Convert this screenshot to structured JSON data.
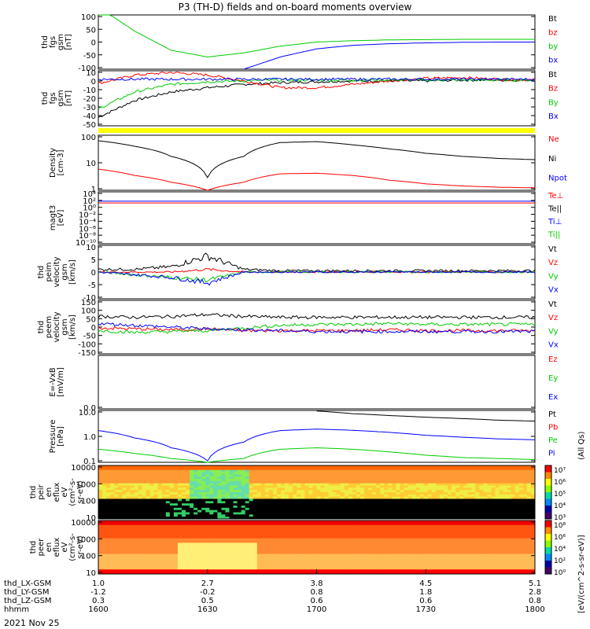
{
  "title": "P3 (TH-D) fields and on-board moments overview",
  "date_label": "2021 Nov 25",
  "cbar_unit_left": "[eV/(cm^2-s-sr-eV)]",
  "cbar_unit_right": "(All Qs)",
  "colors": {
    "black": "#000000",
    "red": "#ff0000",
    "green": "#00cc00",
    "blue": "#0000ff",
    "yellow": "#ffff00"
  },
  "panels": [
    {
      "id": "fgs-gsm",
      "ylabel": [
        "thd",
        "fgs",
        "gsm",
        "[nT]"
      ],
      "ticks": [
        "100",
        "50",
        "0",
        "-50",
        "-100"
      ],
      "legend": [
        {
          "t": "Bt",
          "c": "black"
        },
        {
          "t": "bz",
          "c": "red"
        },
        {
          "t": "by",
          "c": "green"
        },
        {
          "t": "bx",
          "c": "blue"
        }
      ]
    },
    {
      "id": "fgs-gsm-detail",
      "ylabel": [
        "thd",
        "fgs",
        "gsm",
        "[nT]"
      ],
      "ticks": [
        "10",
        "0",
        "-10",
        "-20",
        "-30",
        "-40",
        "-50"
      ],
      "legend": [
        {
          "t": "Bt",
          "c": "black"
        },
        {
          "t": "Bz",
          "c": "red"
        },
        {
          "t": "By",
          "c": "green"
        },
        {
          "t": "Bx",
          "c": "blue"
        }
      ]
    },
    {
      "id": "density",
      "ylabel": [
        "Density",
        "[cm-3]"
      ],
      "ticks": [
        "100",
        "10",
        "1"
      ],
      "legend": [
        {
          "t": "Ne",
          "c": "red"
        },
        {
          "t": "Ni",
          "c": "black"
        },
        {
          "t": "Npot",
          "c": "blue"
        }
      ]
    },
    {
      "id": "temperature",
      "ylabel": [
        "magt3",
        "[eV]"
      ],
      "ticks": [
        "10⁴",
        "10²",
        "10⁰",
        "10⁻²",
        "10⁻⁴",
        "10⁻⁶",
        "10⁻⁸",
        "10⁻¹⁰"
      ],
      "legend": [
        {
          "t": "Te⊥",
          "c": "red"
        },
        {
          "t": "Te||",
          "c": "black"
        },
        {
          "t": "Ti⊥",
          "c": "blue"
        },
        {
          "t": "Ti||",
          "c": "green"
        }
      ]
    },
    {
      "id": "peim-velocity",
      "ylabel": [
        "thd",
        "peim",
        "velocity",
        "gsm",
        "[km/s]"
      ],
      "ticks": [
        "10",
        "5",
        "0",
        "-5",
        "-10"
      ],
      "legend": [
        {
          "t": "Vt",
          "c": "black"
        },
        {
          "t": "Vz",
          "c": "red"
        },
        {
          "t": "Vy",
          "c": "green"
        },
        {
          "t": "Vx",
          "c": "blue"
        }
      ]
    },
    {
      "id": "peem-velocity",
      "ylabel": [
        "thd",
        "peem",
        "velocity",
        "gsm",
        "[km/s]"
      ],
      "ticks": [
        "150",
        "100",
        "50",
        "0",
        "-50",
        "-100",
        "-150"
      ],
      "legend": [
        {
          "t": "Vt",
          "c": "black"
        },
        {
          "t": "Vz",
          "c": "red"
        },
        {
          "t": "Vy",
          "c": "green"
        },
        {
          "t": "Vx",
          "c": "blue"
        }
      ]
    },
    {
      "id": "efield",
      "ylabel": [
        "E=-VxB",
        "[mV/m]"
      ],
      "ticks": [
        "0.0"
      ],
      "legend": [
        {
          "t": "Ez",
          "c": "red"
        },
        {
          "t": "Ey",
          "c": "green"
        },
        {
          "t": "Ex",
          "c": "blue"
        }
      ]
    },
    {
      "id": "pressure",
      "ylabel": [
        "Pressure",
        "[nPa]"
      ],
      "ticks": [
        "10.0",
        "1.0",
        "0.1"
      ],
      "legend": [
        {
          "t": "Pt",
          "c": "black"
        },
        {
          "t": "Pb",
          "c": "red"
        },
        {
          "t": "Pe",
          "c": "green"
        },
        {
          "t": "Pi",
          "c": "blue"
        }
      ]
    },
    {
      "id": "peir-spec",
      "ylabel": [
        "thd",
        "peir",
        "en",
        "eflux",
        "eV",
        "(cm²-s-",
        "sr-eV)"
      ],
      "ticks": [
        "10000",
        "1000",
        "100",
        "10"
      ],
      "cbar_ticks": [
        "10⁷",
        "10⁶",
        "10⁵",
        "10⁴",
        "10³"
      ]
    },
    {
      "id": "peer-spec",
      "ylabel": [
        "thd",
        "peer",
        "en",
        "eflux",
        "eV",
        "(cm²-s-",
        "sr-eV)"
      ],
      "ticks": [
        "10000",
        "1000",
        "100",
        "10"
      ],
      "cbar_ticks": [
        "10⁸",
        "10⁶",
        "10⁴",
        "10²",
        "10⁰"
      ]
    }
  ],
  "x_axis": {
    "rows": [
      {
        "label": "thd_LX-GSM",
        "values": [
          "1.0",
          "2.7",
          "3.8",
          "4.5",
          "5.1"
        ]
      },
      {
        "label": "thd_LY-GSM",
        "values": [
          "-1.2",
          "-0.2",
          "0.8",
          "1.8",
          "2.8"
        ]
      },
      {
        "label": "thd_LZ-GSM",
        "values": [
          "0.3",
          "0.5",
          "0.6",
          "0.6",
          "0.8"
        ]
      },
      {
        "label": "hhmm",
        "values": [
          "1600",
          "1630",
          "1700",
          "1730",
          "1800"
        ]
      }
    ]
  },
  "chart_data": {
    "type": "line",
    "title": "P3 (TH-D) fields and on-board moments overview",
    "x": {
      "label": "hhmm",
      "ticks": [
        "1600",
        "1630",
        "1700",
        "1730",
        "1800"
      ],
      "range": [
        "1600",
        "1800"
      ]
    },
    "series_time": [
      "1600",
      "1610",
      "1620",
      "1630",
      "1640",
      "1650",
      "1700",
      "1710",
      "1720",
      "1730",
      "1740",
      "1750",
      "1800"
    ],
    "panels": [
      {
        "id": "fgs-gsm",
        "ylim": [
          -100,
          100
        ],
        "series": [
          {
            "name": "by",
            "values": [
              130,
              40,
              -30,
              -55,
              -40,
              -15,
              0,
              5,
              8,
              9,
              10,
              10,
              10
            ]
          },
          {
            "name": "bx",
            "values": [
              null,
              null,
              null,
              null,
              -100,
              -55,
              -25,
              -12,
              -6,
              -3,
              -1,
              0,
              0
            ]
          }
        ]
      },
      {
        "id": "fgs-gsm-detail",
        "ylim": [
          -55,
          10
        ],
        "series": [
          {
            "name": "Bt",
            "values": [
              -45,
              -25,
              -15,
              -10,
              -6,
              -4,
              -3,
              -2,
              -2,
              -2,
              -1,
              -1,
              -1
            ]
          },
          {
            "name": "Bz",
            "values": [
              -5,
              5,
              8,
              5,
              -2,
              -10,
              -10,
              -6,
              -2,
              1,
              2,
              0,
              -1
            ]
          },
          {
            "name": "By",
            "values": [
              -35,
              -15,
              -6,
              -3,
              -2,
              -1,
              -1,
              -1,
              -1,
              -1,
              -1,
              -1,
              -1
            ]
          },
          {
            "name": "Bx",
            "values": [
              0,
              0,
              0,
              0,
              0,
              0,
              0,
              0,
              0,
              0,
              0,
              0,
              0
            ]
          }
        ]
      },
      {
        "id": "density",
        "ylim": [
          0.5,
          200
        ],
        "log": true,
        "series": [
          {
            "name": "Ni",
            "values": [
              110,
              60,
              20,
              2,
              20,
              90,
              100,
              70,
              45,
              28,
              20,
              16,
              14
            ]
          },
          {
            "name": "Ne",
            "values": [
              5,
              2.5,
              1.2,
              0.5,
              1.2,
              3,
              3.2,
              2.5,
              1.5,
              1,
              0.8,
              0.7,
              0.65
            ]
          }
        ]
      },
      {
        "id": "temperature",
        "ylim": [
          1e-10,
          10000.0
        ],
        "log": true,
        "series": [
          {
            "name": "Te⊥",
            "values": [
              10,
              10,
              10,
              10,
              10,
              10,
              10,
              10,
              10,
              10,
              10,
              10,
              10
            ]
          },
          {
            "name": "Ti⊥",
            "values": [
              30,
              30,
              30,
              30,
              30,
              30,
              30,
              30,
              30,
              30,
              30,
              30,
              30
            ]
          }
        ]
      },
      {
        "id": "peim-velocity",
        "ylim": [
          -10,
          10
        ],
        "series": [
          {
            "name": "Vt",
            "values": [
              1,
              1,
              2,
              6,
              1,
              0.5,
              0.5,
              0.5,
              0.5,
              0.5,
              0.5,
              0.5,
              0.5
            ]
          },
          {
            "name": "Vz",
            "values": [
              0,
              0,
              0,
              1,
              0,
              0,
              0,
              0,
              0,
              0,
              0,
              0,
              0
            ]
          },
          {
            "name": "Vy",
            "values": [
              0,
              -1,
              -2,
              -3,
              0,
              0,
              0,
              0,
              0,
              0,
              0,
              0,
              0
            ]
          },
          {
            "name": "Vx",
            "values": [
              0,
              -1,
              -2,
              -4,
              0,
              0,
              0,
              0,
              0,
              0,
              0,
              0,
              0
            ]
          }
        ]
      },
      {
        "id": "peem-velocity",
        "ylim": [
          -150,
          150
        ],
        "series": [
          {
            "name": "Vt",
            "values": [
              60,
              55,
              60,
              70,
              60,
              55,
              55,
              55,
              55,
              55,
              55,
              55,
              55
            ]
          },
          {
            "name": "Vz",
            "values": [
              -5,
              -10,
              -15,
              -10,
              -20,
              -20,
              -20,
              -20,
              -15,
              -20,
              -20,
              -20,
              -20
            ]
          },
          {
            "name": "Vy",
            "values": [
              -20,
              -30,
              -25,
              -20,
              -5,
              10,
              15,
              15,
              20,
              15,
              15,
              15,
              15
            ]
          },
          {
            "name": "Vx",
            "values": [
              20,
              10,
              0,
              -10,
              -15,
              -20,
              -25,
              -25,
              -25,
              -25,
              -25,
              -25,
              -25
            ]
          }
        ]
      },
      {
        "id": "pressure",
        "ylim": [
          0.05,
          30
        ],
        "log": true,
        "series": [
          {
            "name": "Pi",
            "values": [
              2.5,
              1,
              0.3,
              0.06,
              0.6,
              2.5,
              3,
              2.6,
              2,
              1.4,
              1.1,
              0.9,
              0.8
            ]
          },
          {
            "name": "Pe",
            "values": [
              0.25,
              0.15,
              0.08,
              0.05,
              0.08,
              0.25,
              0.3,
              0.25,
              0.18,
              0.12,
              0.09,
              0.08,
              0.07
            ]
          },
          {
            "name": "Pt",
            "values": [
              null,
              null,
              null,
              null,
              null,
              null,
              28,
              20,
              16,
              13,
              11,
              9,
              8
            ]
          }
        ]
      }
    ]
  }
}
